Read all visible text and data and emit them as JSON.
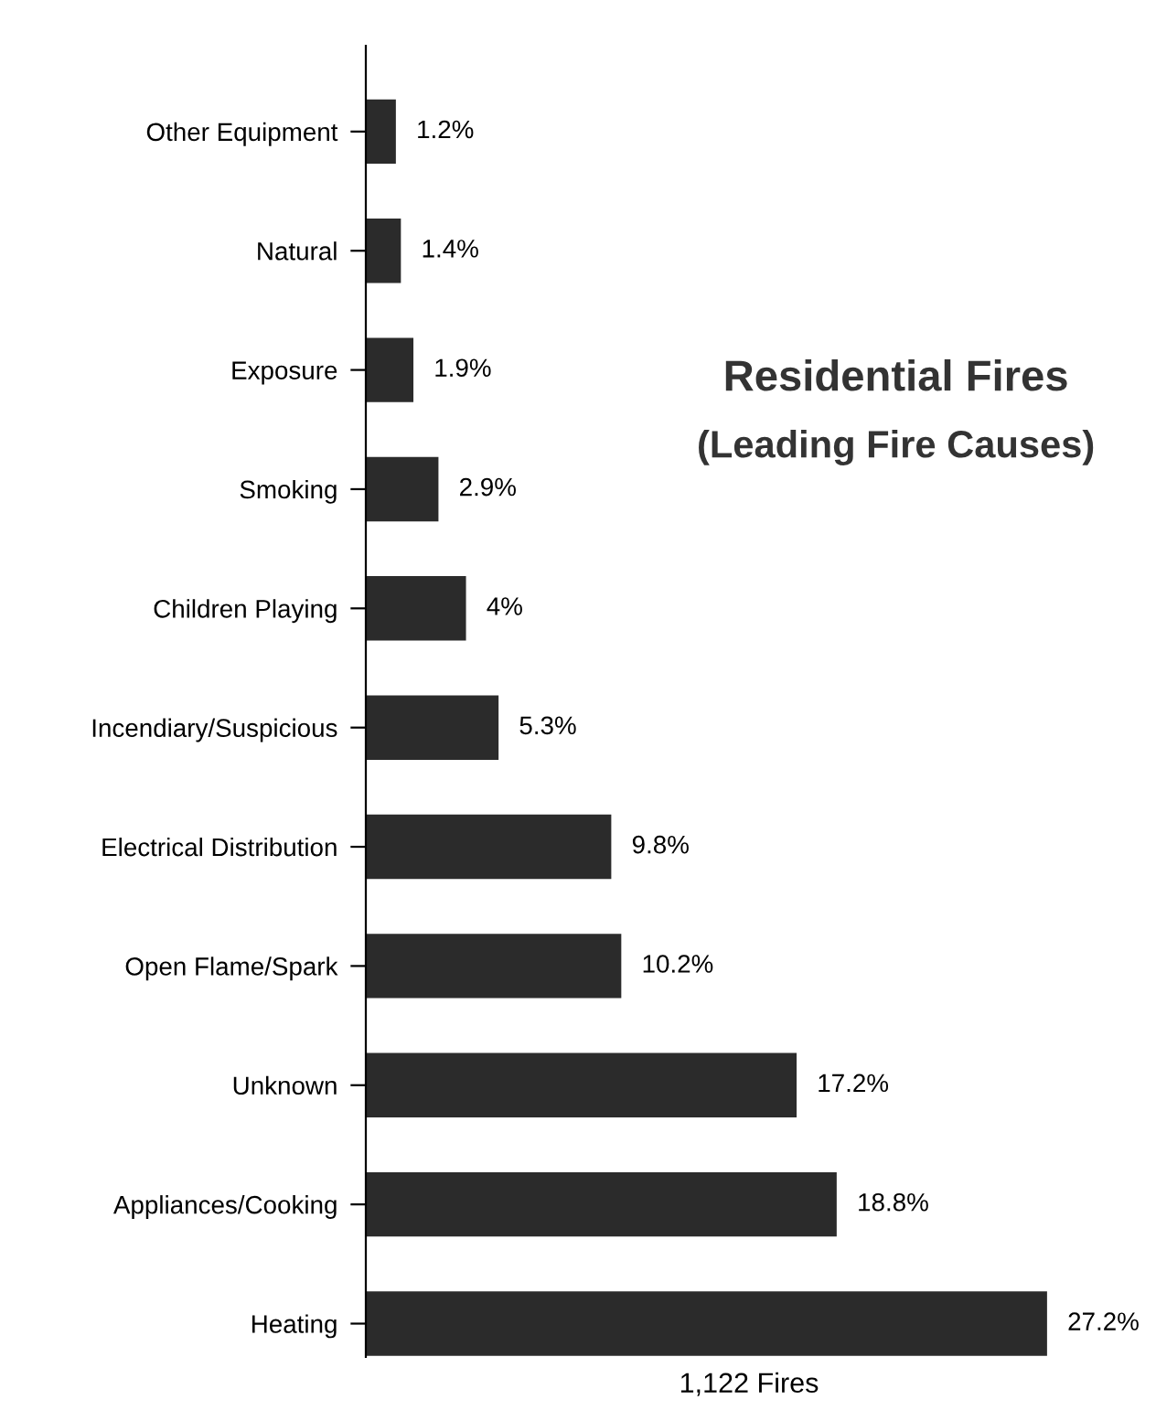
{
  "chart_data": {
    "type": "bar",
    "orientation": "horizontal",
    "title": "Residential Fires",
    "subtitle": "(Leading Fire Causes)",
    "xlabel": "1,122 Fires",
    "categories": [
      "Other Equipment",
      "Natural",
      "Exposure",
      "Smoking",
      "Children Playing",
      "Incendiary/Suspicious",
      "Electrical Distribution",
      "Open Flame/Spark",
      "Unknown",
      "Appliances/Cooking",
      "Heating"
    ],
    "values": [
      1.2,
      1.4,
      1.9,
      2.9,
      4,
      5.3,
      9.8,
      10.2,
      17.2,
      18.8,
      27.2
    ],
    "value_labels": [
      "1.2%",
      "1.4%",
      "1.9%",
      "2.9%",
      "4%",
      "5.3%",
      "9.8%",
      "10.2%",
      "17.2%",
      "18.8%",
      "27.2%"
    ],
    "color": "#2b2b2b"
  }
}
